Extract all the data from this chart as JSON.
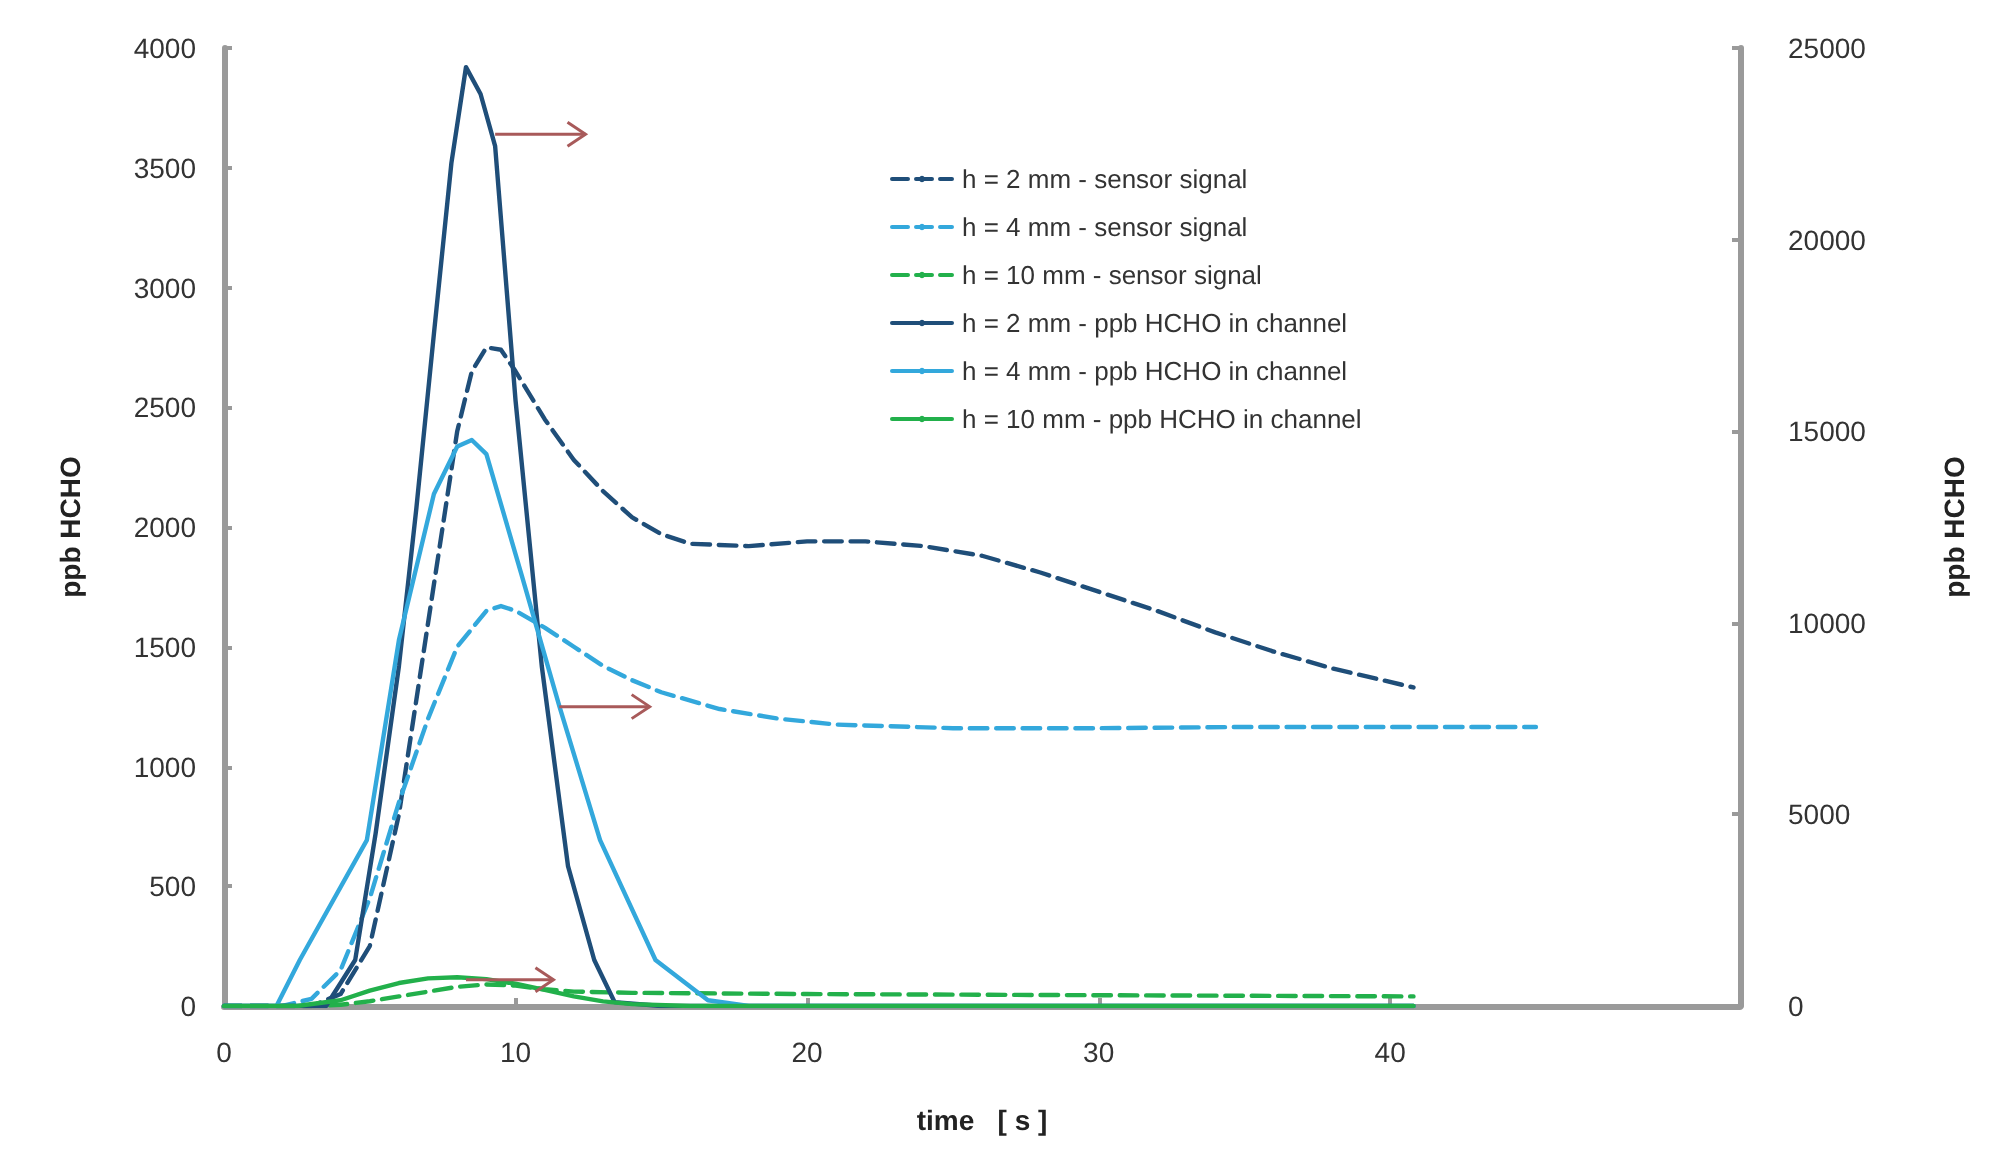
{
  "chart_data": {
    "type": "line",
    "xlabel": "time   [ s ]",
    "ylabel": "ppb HCHO",
    "y2label": "ppb HCHO",
    "xlim": [
      0,
      52
    ],
    "xticks": [
      0,
      10,
      20,
      30,
      40
    ],
    "ylim": [
      0,
      4000
    ],
    "yticks": [
      0,
      500,
      1000,
      1500,
      2000,
      2500,
      3000,
      3500,
      4000
    ],
    "y2lim": [
      0,
      25000
    ],
    "y2ticks": [
      0,
      5000,
      10000,
      15000,
      20000,
      25000
    ],
    "grid": false,
    "legend": "top right",
    "marker": "none",
    "series": [
      {
        "name": "h = 2 mm - sensor signal",
        "color": "#1f4e79",
        "line_style": "dashed",
        "x": [
          0,
          3,
          4,
          5,
          6,
          7,
          7.5,
          8,
          8.5,
          9,
          9.5,
          10,
          11,
          12,
          13,
          14,
          15,
          16,
          18,
          20,
          22,
          24,
          26,
          28,
          30,
          32,
          34,
          36,
          38,
          40.8
        ],
        "values": [
          0,
          0,
          50,
          250,
          800,
          1600,
          2000,
          2400,
          2650,
          2750,
          2740,
          2650,
          2450,
          2280,
          2150,
          2040,
          1970,
          1930,
          1920,
          1940,
          1940,
          1920,
          1880,
          1810,
          1730,
          1650,
          1560,
          1480,
          1410,
          1330
        ]
      },
      {
        "name": "h = 4 mm - sensor signal",
        "color": "#33a8dc",
        "line_style": "dashed",
        "x": [
          0,
          2,
          3,
          4,
          5,
          6,
          7,
          8,
          9,
          9.5,
          10,
          11,
          12,
          13,
          14,
          15,
          17,
          19,
          21,
          25,
          30,
          35,
          40,
          45
        ],
        "values": [
          0,
          0,
          30,
          150,
          450,
          850,
          1200,
          1500,
          1650,
          1670,
          1650,
          1580,
          1500,
          1420,
          1360,
          1310,
          1240,
          1200,
          1175,
          1160,
          1160,
          1165,
          1165,
          1165
        ]
      },
      {
        "name": "h = 10 mm - sensor signal",
        "color": "#22b04b",
        "line_style": "dashed",
        "x": [
          0,
          3,
          4,
          5,
          6,
          7,
          8,
          9,
          10,
          11,
          12,
          14,
          20,
          30,
          40.8
        ],
        "values": [
          0,
          0,
          5,
          20,
          40,
          60,
          80,
          90,
          85,
          70,
          60,
          55,
          50,
          45,
          40
        ]
      },
      {
        "name": "h = 2 mm - ppb HCHO in channel",
        "color": "#1f4e79",
        "line_style": "solid",
        "axis": "y2",
        "x": [
          0,
          3.5,
          4.5,
          5.2,
          6,
          6.6,
          7.2,
          7.8,
          8.3,
          8.8,
          9.3,
          10,
          10.9,
          11.8,
          12.7,
          13.4,
          15,
          20,
          30,
          40.8
        ],
        "values": [
          0,
          0,
          1200,
          4500,
          8870,
          13000,
          17540,
          22000,
          24500,
          23800,
          22440,
          15800,
          8870,
          3650,
          1200,
          100,
          0,
          0,
          0,
          0
        ]
      },
      {
        "name": "h = 4 mm - ppb HCHO in channel",
        "color": "#33a8dc",
        "line_style": "solid",
        "axis": "y2",
        "x": [
          0,
          1.8,
          2.6,
          4.9,
          6,
          7.2,
          8,
          8.5,
          9,
          10.2,
          11.5,
          12.9,
          14.8,
          16.6,
          18,
          25,
          40.8
        ],
        "values": [
          0,
          0,
          1200,
          4330,
          9550,
          13360,
          14600,
          14770,
          14400,
          11270,
          7830,
          4330,
          1200,
          150,
          0,
          0,
          0
        ]
      },
      {
        "name": "h = 10 mm - ppb HCHO in channel",
        "color": "#22b04b",
        "line_style": "solid",
        "axis": "y2",
        "x": [
          0,
          2.5,
          4,
          5,
          6,
          7,
          8,
          9,
          10,
          11,
          12,
          13,
          14,
          16,
          20,
          30,
          40.8
        ],
        "values": [
          0,
          0,
          150,
          400,
          600,
          720,
          750,
          700,
          580,
          420,
          250,
          120,
          50,
          0,
          0,
          0,
          0
        ]
      }
    ]
  }
}
